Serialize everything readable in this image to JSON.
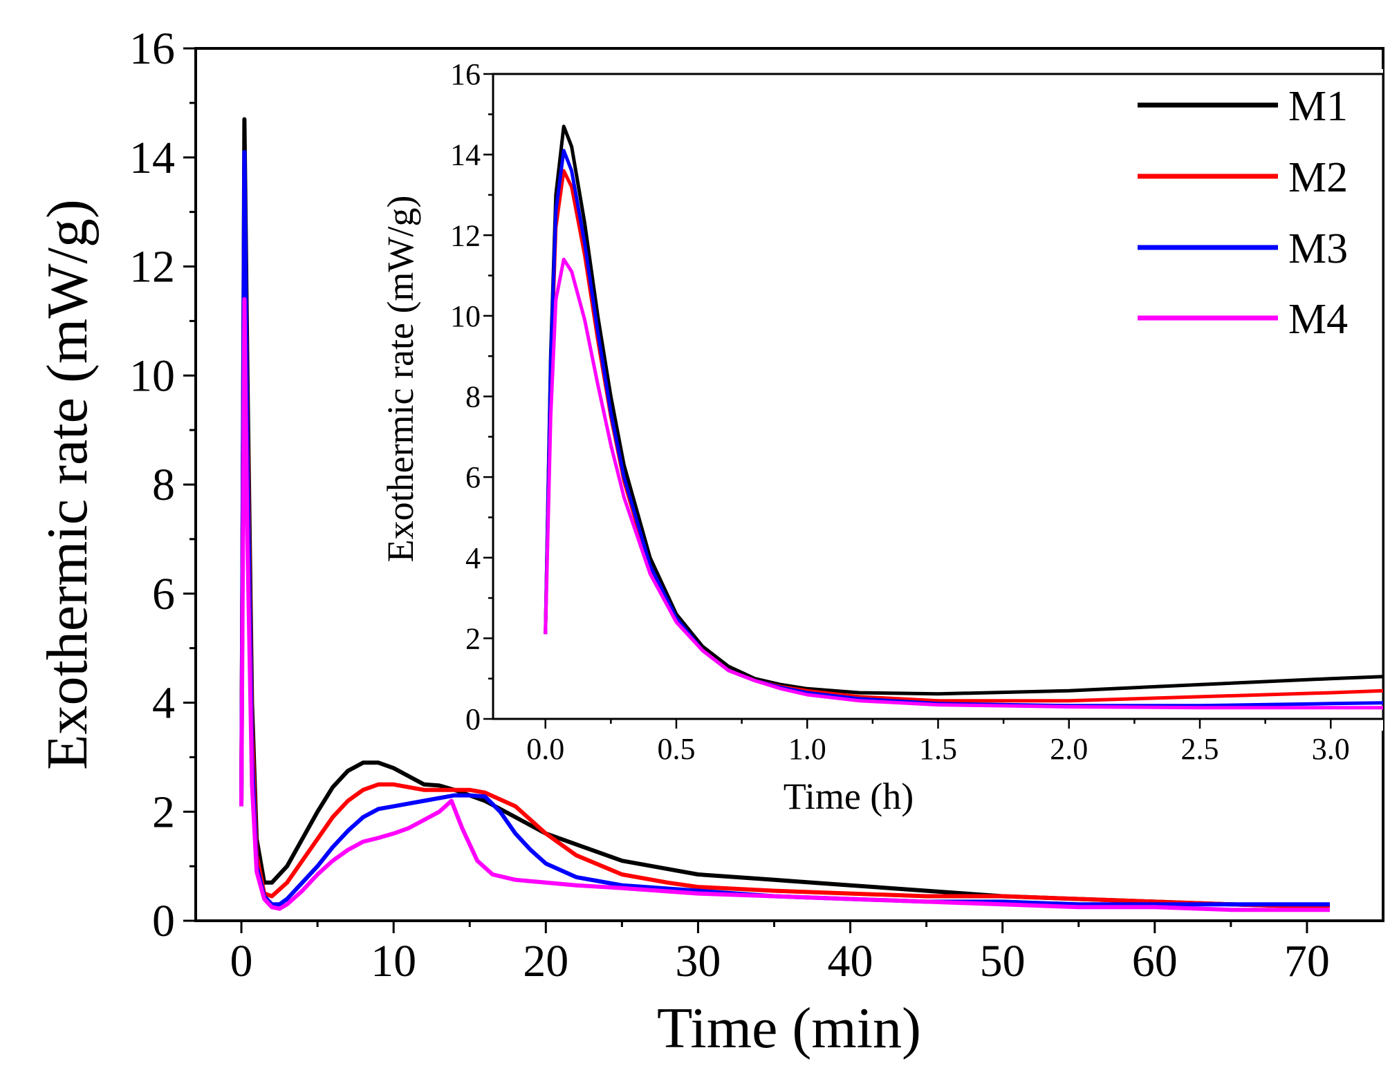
{
  "chart_data": [
    {
      "id": "main",
      "type": "line",
      "xlabel": "Time (min)",
      "ylabel": "Exothermic rate (mW/g)",
      "xlim": [
        -3,
        75
      ],
      "ylim": [
        0,
        16
      ],
      "xticks": [
        0,
        10,
        20,
        30,
        40,
        50,
        60,
        70
      ],
      "yticks": [
        0,
        2,
        4,
        6,
        8,
        10,
        12,
        14,
        16
      ],
      "series": [
        {
          "name": "M1",
          "color": "#000000",
          "x": [
            0,
            0.2,
            0.4,
            0.7,
            1,
            1.5,
            2,
            3,
            4,
            5,
            6,
            7,
            8,
            9,
            10,
            11,
            12,
            13,
            14,
            16,
            18,
            20,
            22,
            25,
            28,
            30,
            35,
            40,
            45,
            50,
            55,
            60,
            65,
            71.5
          ],
          "y": [
            2.1,
            14.7,
            10.0,
            4.0,
            1.5,
            0.7,
            0.7,
            1.0,
            1.5,
            2.0,
            2.45,
            2.75,
            2.9,
            2.9,
            2.8,
            2.65,
            2.5,
            2.48,
            2.4,
            2.2,
            1.9,
            1.6,
            1.4,
            1.1,
            0.95,
            0.85,
            0.75,
            0.65,
            0.55,
            0.45,
            0.4,
            0.35,
            0.3,
            0.25
          ]
        },
        {
          "name": "M2",
          "color": "#ff0000",
          "x": [
            0,
            0.2,
            0.4,
            0.7,
            1,
            1.5,
            2,
            3,
            4,
            5,
            6,
            7,
            8,
            9,
            10,
            11,
            12,
            13,
            14,
            15,
            16,
            18,
            20,
            22,
            25,
            28,
            30,
            35,
            40,
            45,
            50,
            55,
            60,
            65,
            71.5
          ],
          "y": [
            2.1,
            13.6,
            9.0,
            3.5,
            1.2,
            0.5,
            0.45,
            0.7,
            1.1,
            1.5,
            1.9,
            2.2,
            2.4,
            2.5,
            2.5,
            2.45,
            2.4,
            2.4,
            2.4,
            2.4,
            2.35,
            2.1,
            1.6,
            1.2,
            0.85,
            0.7,
            0.62,
            0.55,
            0.5,
            0.45,
            0.45,
            0.4,
            0.35,
            0.3,
            0.25
          ]
        },
        {
          "name": "M3",
          "color": "#0000ff",
          "x": [
            0,
            0.2,
            0.4,
            0.7,
            1,
            1.5,
            2,
            2.5,
            3,
            4,
            5,
            6,
            7,
            8,
            9,
            10,
            11,
            12,
            13,
            14,
            15,
            16,
            17,
            18,
            19,
            20,
            22,
            25,
            30,
            35,
            40,
            45,
            50,
            55,
            60,
            65,
            71.5
          ],
          "y": [
            2.1,
            14.1,
            8.5,
            3.0,
            1.0,
            0.45,
            0.3,
            0.3,
            0.4,
            0.7,
            1.0,
            1.35,
            1.65,
            1.9,
            2.05,
            2.1,
            2.15,
            2.2,
            2.25,
            2.3,
            2.3,
            2.28,
            2.0,
            1.6,
            1.3,
            1.05,
            0.8,
            0.65,
            0.55,
            0.45,
            0.4,
            0.35,
            0.35,
            0.3,
            0.3,
            0.3,
            0.3
          ]
        },
        {
          "name": "M4",
          "color": "#ff00ff",
          "x": [
            0,
            0.2,
            0.4,
            0.7,
            1,
            1.5,
            2,
            2.5,
            3,
            4,
            5,
            6,
            7,
            8,
            9,
            10,
            11,
            12,
            13,
            13.8,
            14.5,
            15.5,
            16.5,
            18,
            20,
            22,
            25,
            30,
            35,
            40,
            45,
            50,
            55,
            60,
            65,
            71.5
          ],
          "y": [
            2.1,
            11.4,
            7.0,
            2.5,
            0.9,
            0.4,
            0.25,
            0.22,
            0.3,
            0.55,
            0.85,
            1.1,
            1.3,
            1.45,
            1.52,
            1.6,
            1.7,
            1.85,
            2.0,
            2.2,
            1.7,
            1.1,
            0.85,
            0.75,
            0.7,
            0.65,
            0.6,
            0.5,
            0.45,
            0.4,
            0.35,
            0.3,
            0.25,
            0.25,
            0.2,
            0.2
          ]
        }
      ]
    },
    {
      "id": "inset",
      "type": "line",
      "xlabel": "Time (h)",
      "ylabel": "Exothermic rate (mW/g)",
      "xlim": [
        -0.2,
        3.2
      ],
      "ylim": [
        0,
        16
      ],
      "xticks": [
        "0.0",
        "0.5",
        "1.0",
        "1.5",
        "2.0",
        "2.5",
        "3.0"
      ],
      "yticks": [
        0,
        2,
        4,
        6,
        8,
        10,
        12,
        14,
        16
      ],
      "series": [
        {
          "name": "M1",
          "color": "#000000",
          "x": [
            0,
            0.02,
            0.04,
            0.07,
            0.1,
            0.15,
            0.2,
            0.25,
            0.3,
            0.4,
            0.5,
            0.6,
            0.7,
            0.8,
            0.9,
            1.0,
            1.2,
            1.5,
            2.0,
            2.5,
            3.0,
            3.2
          ],
          "y": [
            2.1,
            9.0,
            13.0,
            14.7,
            14.2,
            12.3,
            10.0,
            8.0,
            6.3,
            4.0,
            2.6,
            1.8,
            1.3,
            1.0,
            0.85,
            0.75,
            0.65,
            0.62,
            0.7,
            0.85,
            1.0,
            1.05
          ]
        },
        {
          "name": "M2",
          "color": "#ff0000",
          "x": [
            0,
            0.02,
            0.04,
            0.07,
            0.1,
            0.15,
            0.2,
            0.25,
            0.3,
            0.4,
            0.5,
            0.6,
            0.7,
            0.8,
            0.9,
            1.0,
            1.2,
            1.5,
            2.0,
            2.5,
            3.0,
            3.2
          ],
          "y": [
            2.1,
            8.5,
            12.2,
            13.6,
            13.2,
            11.5,
            9.4,
            7.5,
            5.9,
            3.7,
            2.45,
            1.7,
            1.2,
            0.95,
            0.8,
            0.7,
            0.55,
            0.45,
            0.45,
            0.55,
            0.65,
            0.7
          ]
        },
        {
          "name": "M3",
          "color": "#0000ff",
          "x": [
            0,
            0.02,
            0.04,
            0.07,
            0.1,
            0.15,
            0.2,
            0.25,
            0.3,
            0.4,
            0.5,
            0.6,
            0.7,
            0.8,
            0.9,
            1.0,
            1.2,
            1.5,
            2.0,
            2.5,
            3.0,
            3.2
          ],
          "y": [
            2.1,
            8.8,
            12.6,
            14.1,
            13.6,
            11.8,
            9.6,
            7.6,
            6.0,
            3.8,
            2.5,
            1.7,
            1.2,
            0.95,
            0.78,
            0.65,
            0.5,
            0.38,
            0.33,
            0.33,
            0.38,
            0.4
          ]
        },
        {
          "name": "M4",
          "color": "#ff00ff",
          "x": [
            0,
            0.02,
            0.04,
            0.07,
            0.1,
            0.15,
            0.2,
            0.25,
            0.3,
            0.4,
            0.5,
            0.6,
            0.7,
            0.8,
            0.9,
            1.0,
            1.2,
            1.5,
            2.0,
            2.5,
            3.0,
            3.2
          ],
          "y": [
            2.1,
            7.5,
            10.4,
            11.4,
            11.1,
            9.9,
            8.3,
            6.8,
            5.5,
            3.6,
            2.4,
            1.7,
            1.2,
            0.95,
            0.75,
            0.6,
            0.45,
            0.35,
            0.3,
            0.28,
            0.28,
            0.28
          ]
        }
      ]
    }
  ],
  "legend": [
    {
      "label": "M1",
      "color": "#000000"
    },
    {
      "label": "M2",
      "color": "#ff0000"
    },
    {
      "label": "M3",
      "color": "#0000ff"
    },
    {
      "label": "M4",
      "color": "#ff00ff"
    }
  ]
}
